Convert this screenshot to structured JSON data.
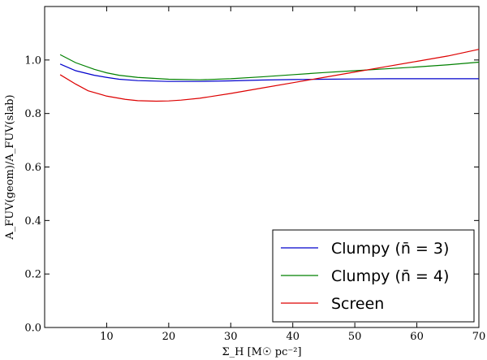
{
  "chart_data": {
    "type": "line",
    "xlabel": "Σ_H [M☉ pc⁻²]",
    "ylabel": "A_FUV(geom)/A_FUV(slab)",
    "xlim": [
      0,
      70
    ],
    "ylim": [
      0.0,
      1.2
    ],
    "x_ticks": [
      "10",
      "20",
      "30",
      "40",
      "50",
      "60",
      "70"
    ],
    "y_ticks": [
      "0.0",
      "0.2",
      "0.4",
      "0.6",
      "0.8",
      "1.0"
    ],
    "legend_position": "lower-right",
    "series": [
      {
        "name": "Clumpy (n̄ = 3)",
        "color": "#0000cc",
        "x": [
          2.5,
          5,
          8,
          10,
          12,
          15,
          20,
          25,
          30,
          35,
          40,
          45,
          50,
          55,
          60,
          65,
          70
        ],
        "y": [
          0.985,
          0.96,
          0.943,
          0.935,
          0.928,
          0.923,
          0.92,
          0.92,
          0.922,
          0.925,
          0.927,
          0.928,
          0.929,
          0.93,
          0.93,
          0.93,
          0.93
        ]
      },
      {
        "name": "Clumpy (n̄ = 4)",
        "color": "#008000",
        "x": [
          2.5,
          5,
          8,
          10,
          12,
          15,
          20,
          25,
          30,
          35,
          40,
          45,
          50,
          55,
          60,
          65,
          70
        ],
        "y": [
          1.02,
          0.99,
          0.965,
          0.952,
          0.943,
          0.935,
          0.928,
          0.926,
          0.93,
          0.937,
          0.945,
          0.953,
          0.96,
          0.967,
          0.974,
          0.982,
          0.992
        ]
      },
      {
        "name": "Screen",
        "color": "#dd0000",
        "x": [
          2.5,
          5,
          7,
          10,
          13,
          15,
          18,
          20,
          22,
          25,
          30,
          35,
          40,
          45,
          50,
          55,
          60,
          65,
          70
        ],
        "y": [
          0.945,
          0.91,
          0.885,
          0.865,
          0.853,
          0.848,
          0.846,
          0.847,
          0.85,
          0.857,
          0.875,
          0.895,
          0.915,
          0.935,
          0.955,
          0.975,
          0.995,
          1.015,
          1.04
        ]
      }
    ]
  }
}
